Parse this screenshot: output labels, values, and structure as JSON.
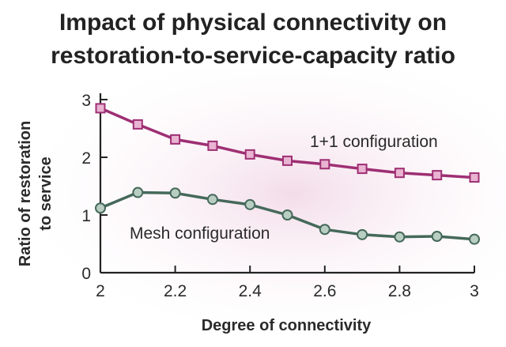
{
  "chart_data": {
    "type": "line",
    "title_lines": [
      "Impact of physical connectivity on",
      "restoration-to-service-capacity ratio"
    ],
    "xlabel": "Degree of connectivity",
    "ylabel_lines": [
      "Ratio of restoration",
      "to service"
    ],
    "xlim": [
      2,
      3
    ],
    "ylim": [
      0,
      3
    ],
    "x_ticks": [
      2,
      2.2,
      2.4,
      2.6,
      2.8,
      3
    ],
    "x_tick_labels": [
      "2",
      "2.2",
      "2.4",
      "2.6",
      "2.8",
      "3"
    ],
    "y_ticks": [
      0,
      1,
      2,
      3
    ],
    "y_tick_labels": [
      "0",
      "1",
      "2",
      "3"
    ],
    "grid": false,
    "x": [
      2.0,
      2.1,
      2.2,
      2.3,
      2.4,
      2.5,
      2.6,
      2.7,
      2.8,
      2.9,
      3.0
    ],
    "series": [
      {
        "name": "1+1 configuration",
        "marker": "square",
        "color": "#9e2f73",
        "marker_fill": "#e9b3d2",
        "values": [
          2.85,
          2.57,
          2.31,
          2.2,
          2.05,
          1.94,
          1.88,
          1.8,
          1.73,
          1.69,
          1.65
        ]
      },
      {
        "name": "Mesh configuration",
        "marker": "circle",
        "color": "#45695a",
        "marker_fill": "#b9cec2",
        "values": [
          1.12,
          1.39,
          1.38,
          1.27,
          1.18,
          1.0,
          0.75,
          0.66,
          0.62,
          0.63,
          0.58
        ]
      }
    ],
    "colors": {
      "axis": "#222222",
      "background_glow": "#f3dce9"
    }
  }
}
